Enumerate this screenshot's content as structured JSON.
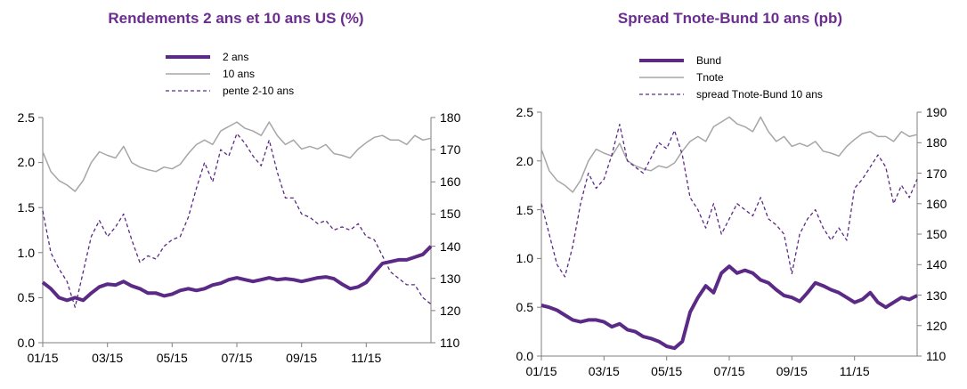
{
  "colors": {
    "purple": "#5b2a86",
    "grey": "#a6a6a6",
    "title": "#6b2d8f",
    "axis": "#7f7f7f",
    "text": "#000000"
  },
  "chart_data": [
    {
      "type": "line",
      "title": "Rendements 2 ans et 10 ans US (%)",
      "x_ticks": [
        "01/15",
        "03/15",
        "05/15",
        "07/15",
        "09/15",
        "11/15"
      ],
      "x_range": [
        0,
        12
      ],
      "y_left": {
        "range": [
          0,
          2.5
        ],
        "ticks": [
          "0.0",
          "0.5",
          "1.0",
          "1.5",
          "2.0",
          "2.5"
        ],
        "unit": "%"
      },
      "y_right": {
        "range": [
          110,
          180
        ],
        "ticks": [
          "110",
          "120",
          "130",
          "140",
          "150",
          "160",
          "170",
          "180"
        ],
        "unit": "pb"
      },
      "legend_position": "top-center",
      "series": [
        {
          "name": "2 ans",
          "axis": "left",
          "style": "thick",
          "x": [
            0,
            0.25,
            0.5,
            0.75,
            1,
            1.25,
            1.5,
            1.75,
            2,
            2.25,
            2.5,
            2.75,
            3,
            3.25,
            3.5,
            3.75,
            4,
            4.25,
            4.5,
            4.75,
            5,
            5.25,
            5.5,
            5.75,
            6,
            6.25,
            6.5,
            6.75,
            7,
            7.25,
            7.5,
            7.75,
            8,
            8.25,
            8.5,
            8.75,
            9,
            9.25,
            9.5,
            9.75,
            10,
            10.25,
            10.5,
            10.75,
            11,
            11.25,
            11.5,
            11.75,
            12
          ],
          "y": [
            0.67,
            0.6,
            0.5,
            0.47,
            0.5,
            0.47,
            0.55,
            0.62,
            0.65,
            0.64,
            0.68,
            0.63,
            0.6,
            0.55,
            0.55,
            0.52,
            0.54,
            0.58,
            0.6,
            0.58,
            0.6,
            0.64,
            0.66,
            0.7,
            0.72,
            0.7,
            0.68,
            0.7,
            0.72,
            0.7,
            0.71,
            0.7,
            0.68,
            0.7,
            0.72,
            0.73,
            0.71,
            0.65,
            0.6,
            0.62,
            0.67,
            0.78,
            0.88,
            0.9,
            0.92,
            0.92,
            0.95,
            0.98,
            1.07
          ]
        },
        {
          "name": "10 ans",
          "axis": "left",
          "style": "solid",
          "x": [
            0,
            0.25,
            0.5,
            0.75,
            1,
            1.25,
            1.5,
            1.75,
            2,
            2.25,
            2.5,
            2.75,
            3,
            3.25,
            3.5,
            3.75,
            4,
            4.25,
            4.5,
            4.75,
            5,
            5.25,
            5.5,
            5.75,
            6,
            6.25,
            6.5,
            6.75,
            7,
            7.25,
            7.5,
            7.75,
            8,
            8.25,
            8.5,
            8.75,
            9,
            9.25,
            9.5,
            9.75,
            10,
            10.25,
            10.5,
            10.75,
            11,
            11.25,
            11.5,
            11.75,
            12
          ],
          "y": [
            2.12,
            1.9,
            1.8,
            1.75,
            1.68,
            1.8,
            2.0,
            2.12,
            2.08,
            2.05,
            2.18,
            2.0,
            1.95,
            1.92,
            1.9,
            1.95,
            1.93,
            1.98,
            2.1,
            2.2,
            2.25,
            2.2,
            2.35,
            2.4,
            2.45,
            2.38,
            2.35,
            2.3,
            2.45,
            2.3,
            2.2,
            2.25,
            2.15,
            2.18,
            2.15,
            2.2,
            2.1,
            2.08,
            2.05,
            2.15,
            2.22,
            2.28,
            2.3,
            2.25,
            2.25,
            2.2,
            2.3,
            2.25,
            2.27
          ]
        },
        {
          "name": "pente 2-10 ans",
          "axis": "right",
          "style": "dashed",
          "x": [
            0,
            0.25,
            0.5,
            0.75,
            1,
            1.25,
            1.5,
            1.75,
            2,
            2.25,
            2.5,
            2.75,
            3,
            3.25,
            3.5,
            3.75,
            4,
            4.25,
            4.5,
            4.75,
            5,
            5.25,
            5.5,
            5.75,
            6,
            6.25,
            6.5,
            6.75,
            7,
            7.25,
            7.5,
            7.75,
            8,
            8.25,
            8.5,
            8.75,
            9,
            9.25,
            9.5,
            9.75,
            10,
            10.25,
            10.5,
            10.75,
            11,
            11.25,
            11.5,
            11.75,
            12
          ],
          "y": [
            151,
            138,
            133,
            129,
            121,
            132,
            143,
            148,
            143,
            146,
            150,
            142,
            135,
            137,
            136,
            140,
            142,
            143,
            149,
            158,
            166,
            160,
            170,
            168,
            175,
            172,
            168,
            165,
            173,
            163,
            155,
            155,
            150,
            149,
            147,
            148,
            145,
            146,
            145,
            147,
            143,
            142,
            137,
            132,
            130,
            128,
            128,
            124,
            122
          ]
        }
      ]
    },
    {
      "type": "line",
      "title": "Spread Tnote-Bund 10 ans (pb)",
      "x_ticks": [
        "01/15",
        "03/15",
        "05/15",
        "07/15",
        "09/15",
        "11/15"
      ],
      "x_range": [
        0,
        12
      ],
      "y_left": {
        "range": [
          0,
          2.5
        ],
        "ticks": [
          "0.0",
          "0.5",
          "1.0",
          "1.5",
          "2.0",
          "2.5"
        ],
        "unit": "%"
      },
      "y_right": {
        "range": [
          110,
          190
        ],
        "ticks": [
          "110",
          "120",
          "130",
          "140",
          "150",
          "160",
          "170",
          "180",
          "190"
        ],
        "unit": "pb"
      },
      "legend_position": "top-center",
      "series": [
        {
          "name": "Bund",
          "axis": "left",
          "style": "thick",
          "x": [
            0,
            0.25,
            0.5,
            0.75,
            1,
            1.25,
            1.5,
            1.75,
            2,
            2.25,
            2.5,
            2.75,
            3,
            3.25,
            3.5,
            3.75,
            4,
            4.25,
            4.5,
            4.75,
            5,
            5.25,
            5.5,
            5.75,
            6,
            6.25,
            6.5,
            6.75,
            7,
            7.25,
            7.5,
            7.75,
            8,
            8.25,
            8.5,
            8.75,
            9,
            9.25,
            9.5,
            9.75,
            10,
            10.25,
            10.5,
            10.75,
            11,
            11.25,
            11.5,
            11.75,
            12
          ],
          "y": [
            0.52,
            0.5,
            0.47,
            0.42,
            0.37,
            0.35,
            0.37,
            0.37,
            0.35,
            0.3,
            0.33,
            0.27,
            0.25,
            0.2,
            0.18,
            0.15,
            0.1,
            0.08,
            0.15,
            0.45,
            0.6,
            0.72,
            0.65,
            0.85,
            0.92,
            0.85,
            0.88,
            0.85,
            0.78,
            0.75,
            0.68,
            0.62,
            0.6,
            0.56,
            0.65,
            0.75,
            0.72,
            0.68,
            0.65,
            0.6,
            0.55,
            0.58,
            0.65,
            0.55,
            0.5,
            0.55,
            0.6,
            0.58,
            0.62
          ]
        },
        {
          "name": "Tnote",
          "axis": "left",
          "style": "solid",
          "x": [
            0,
            0.25,
            0.5,
            0.75,
            1,
            1.25,
            1.5,
            1.75,
            2,
            2.25,
            2.5,
            2.75,
            3,
            3.25,
            3.5,
            3.75,
            4,
            4.25,
            4.5,
            4.75,
            5,
            5.25,
            5.5,
            5.75,
            6,
            6.25,
            6.5,
            6.75,
            7,
            7.25,
            7.5,
            7.75,
            8,
            8.25,
            8.5,
            8.75,
            9,
            9.25,
            9.5,
            9.75,
            10,
            10.25,
            10.5,
            10.75,
            11,
            11.25,
            11.5,
            11.75,
            12
          ],
          "y": [
            2.12,
            1.9,
            1.8,
            1.75,
            1.68,
            1.8,
            2.0,
            2.12,
            2.08,
            2.05,
            2.18,
            2.0,
            1.95,
            1.92,
            1.9,
            1.95,
            1.93,
            1.98,
            2.1,
            2.2,
            2.25,
            2.2,
            2.35,
            2.4,
            2.45,
            2.38,
            2.35,
            2.3,
            2.45,
            2.3,
            2.2,
            2.25,
            2.15,
            2.18,
            2.15,
            2.2,
            2.1,
            2.08,
            2.05,
            2.15,
            2.22,
            2.28,
            2.3,
            2.25,
            2.25,
            2.2,
            2.3,
            2.25,
            2.27
          ]
        },
        {
          "name": "spread Tnote-Bund 10 ans",
          "axis": "right",
          "style": "dashed",
          "x": [
            0,
            0.25,
            0.5,
            0.75,
            1,
            1.25,
            1.5,
            1.75,
            2,
            2.25,
            2.5,
            2.75,
            3,
            3.25,
            3.5,
            3.75,
            4,
            4.25,
            4.5,
            4.75,
            5,
            5.25,
            5.5,
            5.75,
            6,
            6.25,
            6.5,
            6.75,
            7,
            7.25,
            7.5,
            7.75,
            8,
            8.25,
            8.5,
            8.75,
            9,
            9.25,
            9.5,
            9.75,
            10,
            10.25,
            10.5,
            10.75,
            11,
            11.25,
            11.5,
            11.75,
            12
          ],
          "y": [
            160,
            150,
            140,
            136,
            146,
            160,
            170,
            165,
            168,
            176,
            186,
            174,
            172,
            170,
            175,
            180,
            178,
            184,
            176,
            162,
            158,
            152,
            160,
            150,
            155,
            160,
            158,
            156,
            162,
            155,
            153,
            150,
            137,
            150,
            155,
            158,
            152,
            148,
            152,
            148,
            165,
            168,
            172,
            176,
            172,
            160,
            166,
            162,
            168
          ]
        }
      ]
    }
  ]
}
